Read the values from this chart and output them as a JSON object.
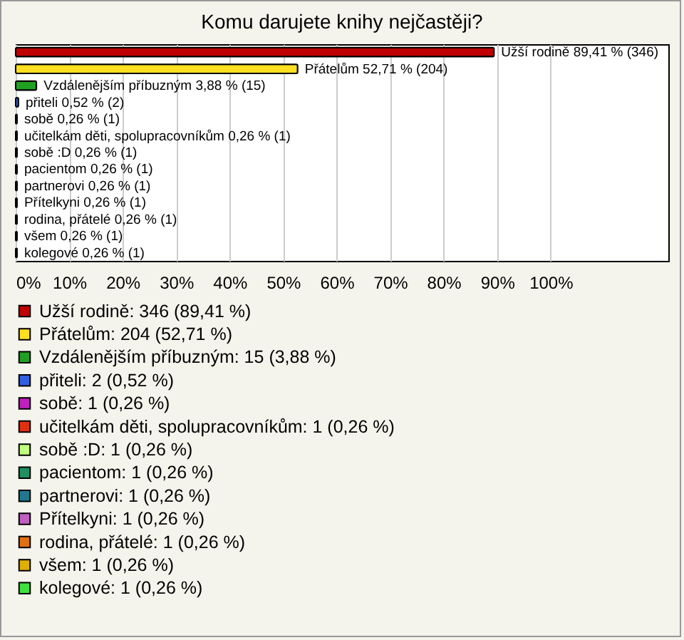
{
  "chart_data": {
    "type": "bar",
    "orientation": "horizontal",
    "stacked": true,
    "title": "Komu darujete knihy nejčastěji?",
    "categories": [
      "Užší rodině",
      "Přátelům",
      "Vzdálenějším příbuzným",
      "přiteli",
      "sobě",
      "učitelkám děti, spolupracovníkům",
      "sobě :D",
      "pacientom",
      "partnerovi",
      "Přítelkyni",
      "rodina, přátelé",
      "všem",
      "kolegové"
    ],
    "series": [
      {
        "name": "Užší rodině: 346 (89,41 %)",
        "color": "#c00000",
        "values": [
          89.41,
          null,
          null,
          null,
          null,
          null,
          null,
          null,
          null,
          null,
          null,
          null,
          null
        ],
        "value_labels": [
          "89,41 % (346)",
          null,
          null,
          null,
          null,
          null,
          null,
          null,
          null,
          null,
          null,
          null,
          null
        ]
      },
      {
        "name": "Přátelům: 204 (52,71 %)",
        "color": "#ffe020",
        "values": [
          null,
          52.71,
          null,
          null,
          null,
          null,
          null,
          null,
          null,
          null,
          null,
          null,
          null
        ],
        "value_labels": [
          null,
          "52,71 % (204)",
          null,
          null,
          null,
          null,
          null,
          null,
          null,
          null,
          null,
          null,
          null
        ]
      },
      {
        "name": "Vzdálenějším příbuzným: 15 (3,88 %)",
        "color": "#20a020",
        "values": [
          null,
          null,
          3.88,
          null,
          null,
          null,
          null,
          null,
          null,
          null,
          null,
          null,
          null
        ],
        "value_labels": [
          null,
          null,
          "3,88 % (15)",
          null,
          null,
          null,
          null,
          null,
          null,
          null,
          null,
          null,
          null
        ]
      },
      {
        "name": "přiteli: 2 (0,52 %)",
        "color": "#3060e0",
        "values": [
          null,
          null,
          null,
          0.52,
          null,
          null,
          null,
          null,
          null,
          null,
          null,
          null,
          null
        ],
        "value_labels": [
          null,
          null,
          null,
          "0,52 % (2)",
          null,
          null,
          null,
          null,
          null,
          null,
          null,
          null,
          null
        ]
      },
      {
        "name": "sobě: 1 (0,26 %)",
        "color": "#c020c0",
        "values": [
          null,
          null,
          null,
          null,
          0.26,
          null,
          null,
          null,
          null,
          null,
          null,
          null,
          null
        ],
        "value_labels": [
          null,
          null,
          null,
          null,
          "0,26 % (1)",
          null,
          null,
          null,
          null,
          null,
          null,
          null,
          null
        ]
      },
      {
        "name": "učitelkám děti, spolupracovníkům: 1 (0,26 %)",
        "color": "#e03010",
        "values": [
          null,
          null,
          null,
          null,
          null,
          0.26,
          null,
          null,
          null,
          null,
          null,
          null,
          null
        ],
        "value_labels": [
          null,
          null,
          null,
          null,
          null,
          "0,26 % (1)",
          null,
          null,
          null,
          null,
          null,
          null,
          null
        ]
      },
      {
        "name": "sobě :D: 1 (0,26 %)",
        "color": "#c0ff80",
        "values": [
          null,
          null,
          null,
          null,
          null,
          null,
          0.26,
          null,
          null,
          null,
          null,
          null,
          null
        ],
        "value_labels": [
          null,
          null,
          null,
          null,
          null,
          null,
          "0,26 % (1)",
          null,
          null,
          null,
          null,
          null,
          null
        ]
      },
      {
        "name": "pacientom: 1 (0,26 %)",
        "color": "#209060",
        "values": [
          null,
          null,
          null,
          null,
          null,
          null,
          null,
          0.26,
          null,
          null,
          null,
          null,
          null
        ],
        "value_labels": [
          null,
          null,
          null,
          null,
          null,
          null,
          null,
          "0,26 % (1)",
          null,
          null,
          null,
          null,
          null
        ]
      },
      {
        "name": "partnerovi: 1 (0,26 %)",
        "color": "#207890",
        "values": [
          null,
          null,
          null,
          null,
          null,
          null,
          null,
          null,
          0.26,
          null,
          null,
          null,
          null
        ],
        "value_labels": [
          null,
          null,
          null,
          null,
          null,
          null,
          null,
          null,
          "0,26 % (1)",
          null,
          null,
          null,
          null
        ]
      },
      {
        "name": "Přítelkyni: 1 (0,26 %)",
        "color": "#c060c0",
        "values": [
          null,
          null,
          null,
          null,
          null,
          null,
          null,
          null,
          null,
          0.26,
          null,
          null,
          null
        ],
        "value_labels": [
          null,
          null,
          null,
          null,
          null,
          null,
          null,
          null,
          null,
          "0,26 % (1)",
          null,
          null,
          null
        ]
      },
      {
        "name": "rodina, přátelé: 1 (0,26 %)",
        "color": "#e07010",
        "values": [
          null,
          null,
          null,
          null,
          null,
          null,
          null,
          null,
          null,
          null,
          0.26,
          null,
          null
        ],
        "value_labels": [
          null,
          null,
          null,
          null,
          null,
          null,
          null,
          null,
          null,
          null,
          "0,26 % (1)",
          null,
          null
        ]
      },
      {
        "name": "všem: 1 (0,26 %)",
        "color": "#e0b000",
        "values": [
          null,
          null,
          null,
          null,
          null,
          null,
          null,
          null,
          null,
          null,
          null,
          0.26,
          null
        ],
        "value_labels": [
          null,
          null,
          null,
          null,
          null,
          null,
          null,
          null,
          null,
          null,
          null,
          "0,26 % (1)",
          null
        ]
      },
      {
        "name": "kolegové: 1 (0,26 %)",
        "color": "#40e040",
        "values": [
          null,
          null,
          null,
          null,
          null,
          null,
          null,
          null,
          null,
          null,
          null,
          null,
          0.26
        ],
        "value_labels": [
          null,
          null,
          null,
          null,
          null,
          null,
          null,
          null,
          null,
          null,
          null,
          null,
          "0,26 % (1)"
        ]
      }
    ],
    "xlim": [
      0,
      122
    ],
    "xticks": [
      {
        "value": 0,
        "label": "0%"
      },
      {
        "value": 10,
        "label": "10%"
      },
      {
        "value": 20,
        "label": "20%"
      },
      {
        "value": 30,
        "label": "30%"
      },
      {
        "value": 40,
        "label": "40%"
      },
      {
        "value": 50,
        "label": "50%"
      },
      {
        "value": 60,
        "label": "60%"
      },
      {
        "value": 70,
        "label": "70%"
      },
      {
        "value": 80,
        "label": "80%"
      },
      {
        "value": 90,
        "label": "90%"
      },
      {
        "value": 100,
        "label": "100%"
      }
    ],
    "grid": "x",
    "legend": "bottom",
    "tick_labels": "x"
  }
}
